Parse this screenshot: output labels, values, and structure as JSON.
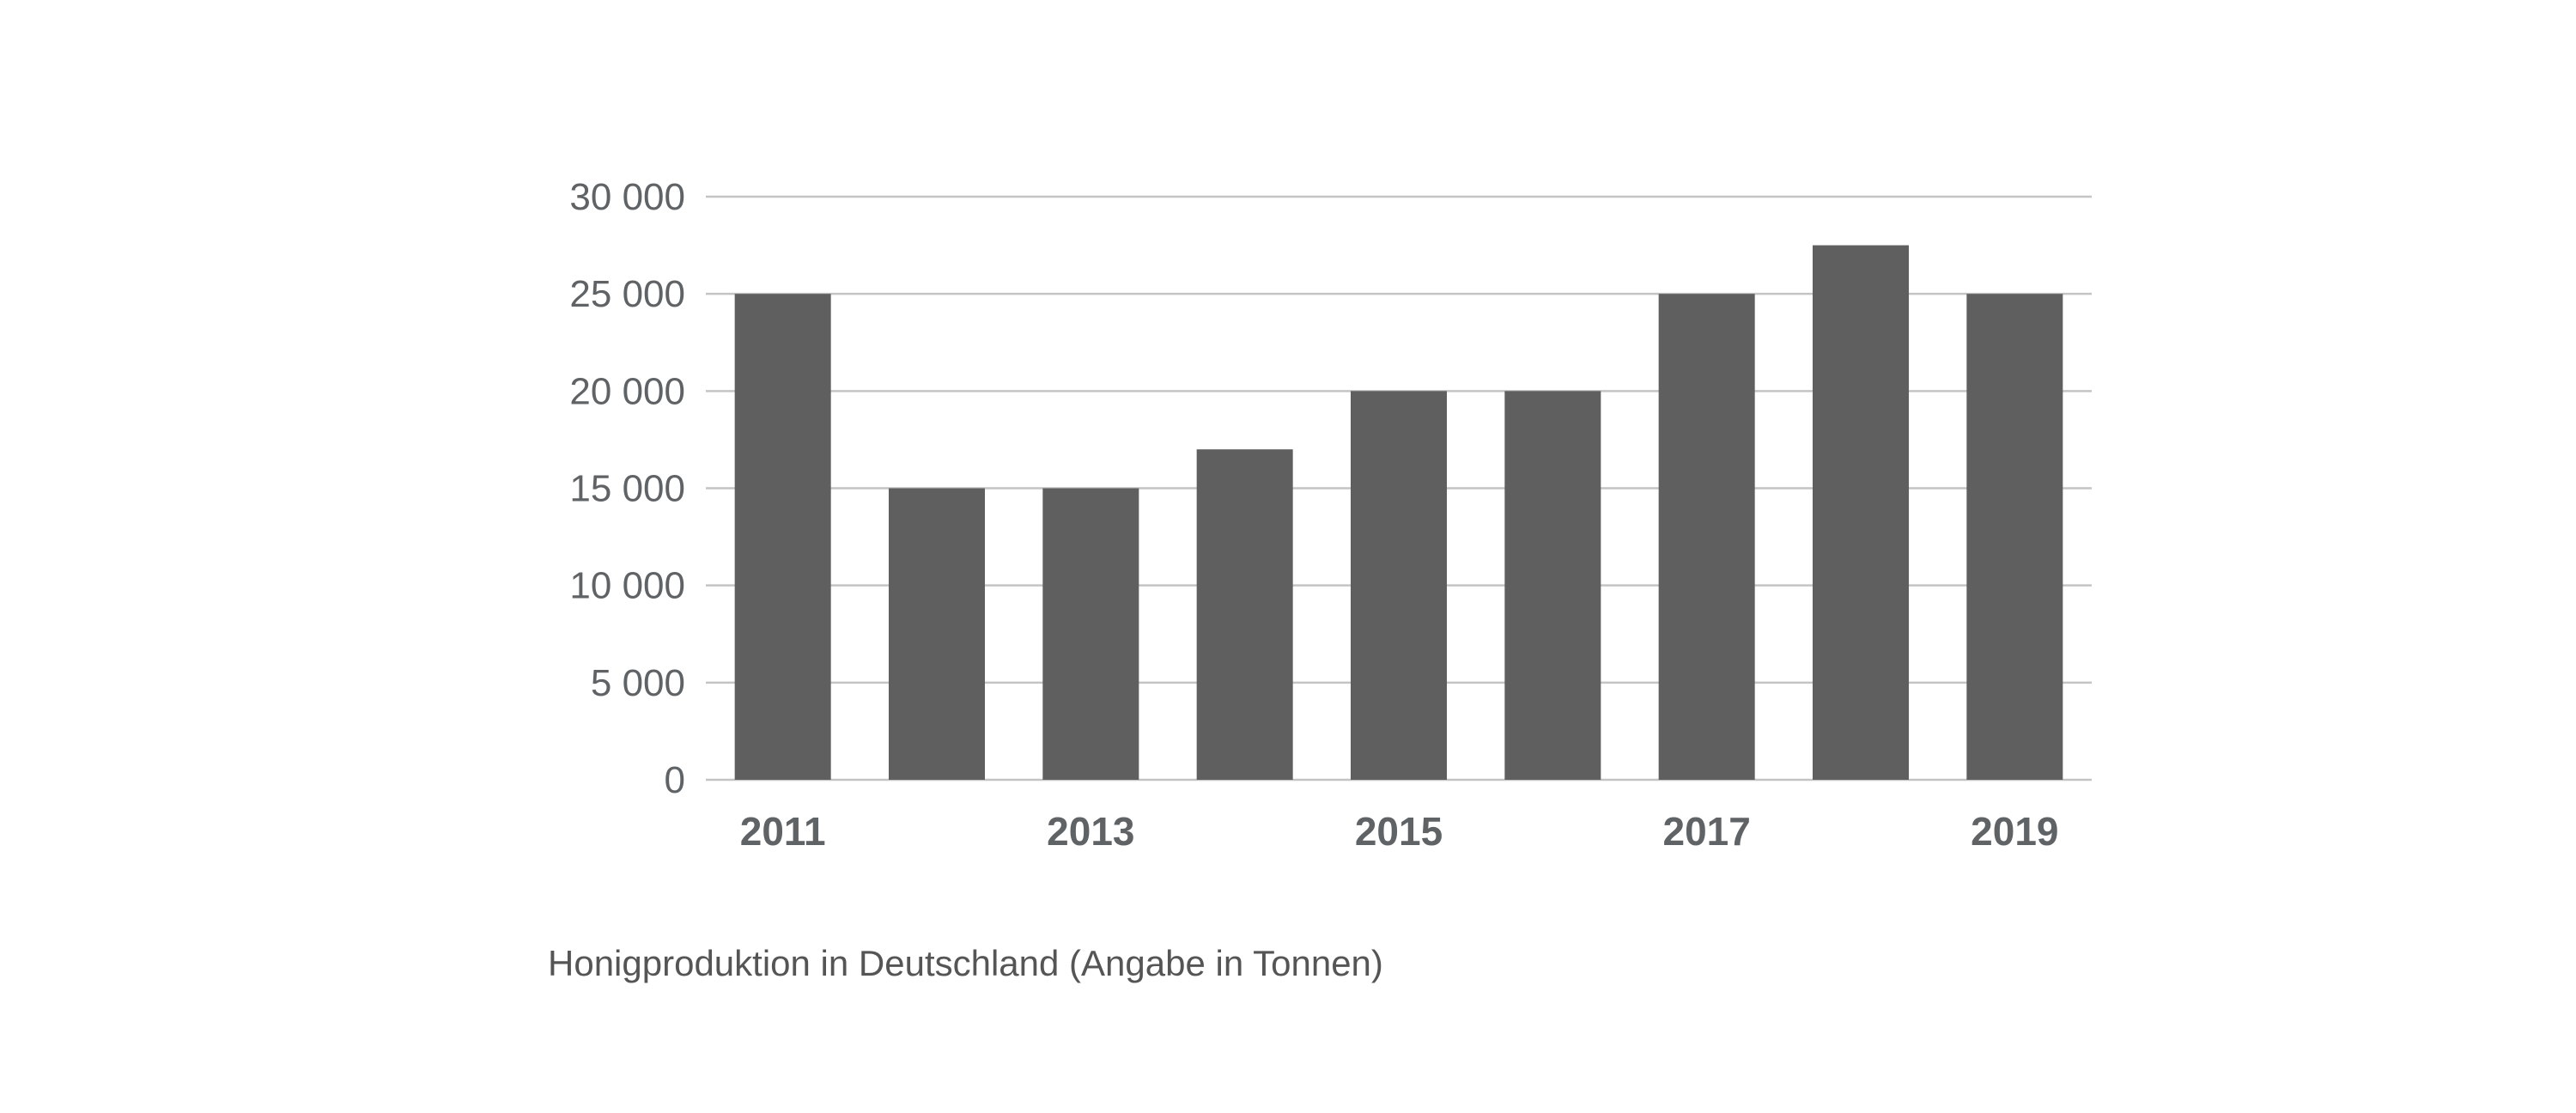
{
  "caption": "Honigproduktion in Deutschland (Angabe in Tonnen)",
  "chart_data": {
    "type": "bar",
    "categories": [
      "2011",
      "2012",
      "2013",
      "2014",
      "2015",
      "2016",
      "2017",
      "2018",
      "2019"
    ],
    "values": [
      25000,
      15000,
      15000,
      17000,
      20000,
      20000,
      25000,
      27500,
      25000
    ],
    "x_tick_labels": [
      "2011",
      "",
      "2013",
      "",
      "2015",
      "",
      "2017",
      "",
      "2019"
    ],
    "y_ticks": [
      0,
      5000,
      10000,
      15000,
      20000,
      25000,
      30000
    ],
    "y_tick_labels": [
      "0",
      "5 000",
      "10 000",
      "15 000",
      "20 000",
      "25 000",
      "30 000"
    ],
    "ylim": [
      0,
      30000
    ],
    "title": "",
    "xlabel": "",
    "ylabel": "",
    "grid": true,
    "legend": "none",
    "bar_color": "#5f5f5f"
  }
}
